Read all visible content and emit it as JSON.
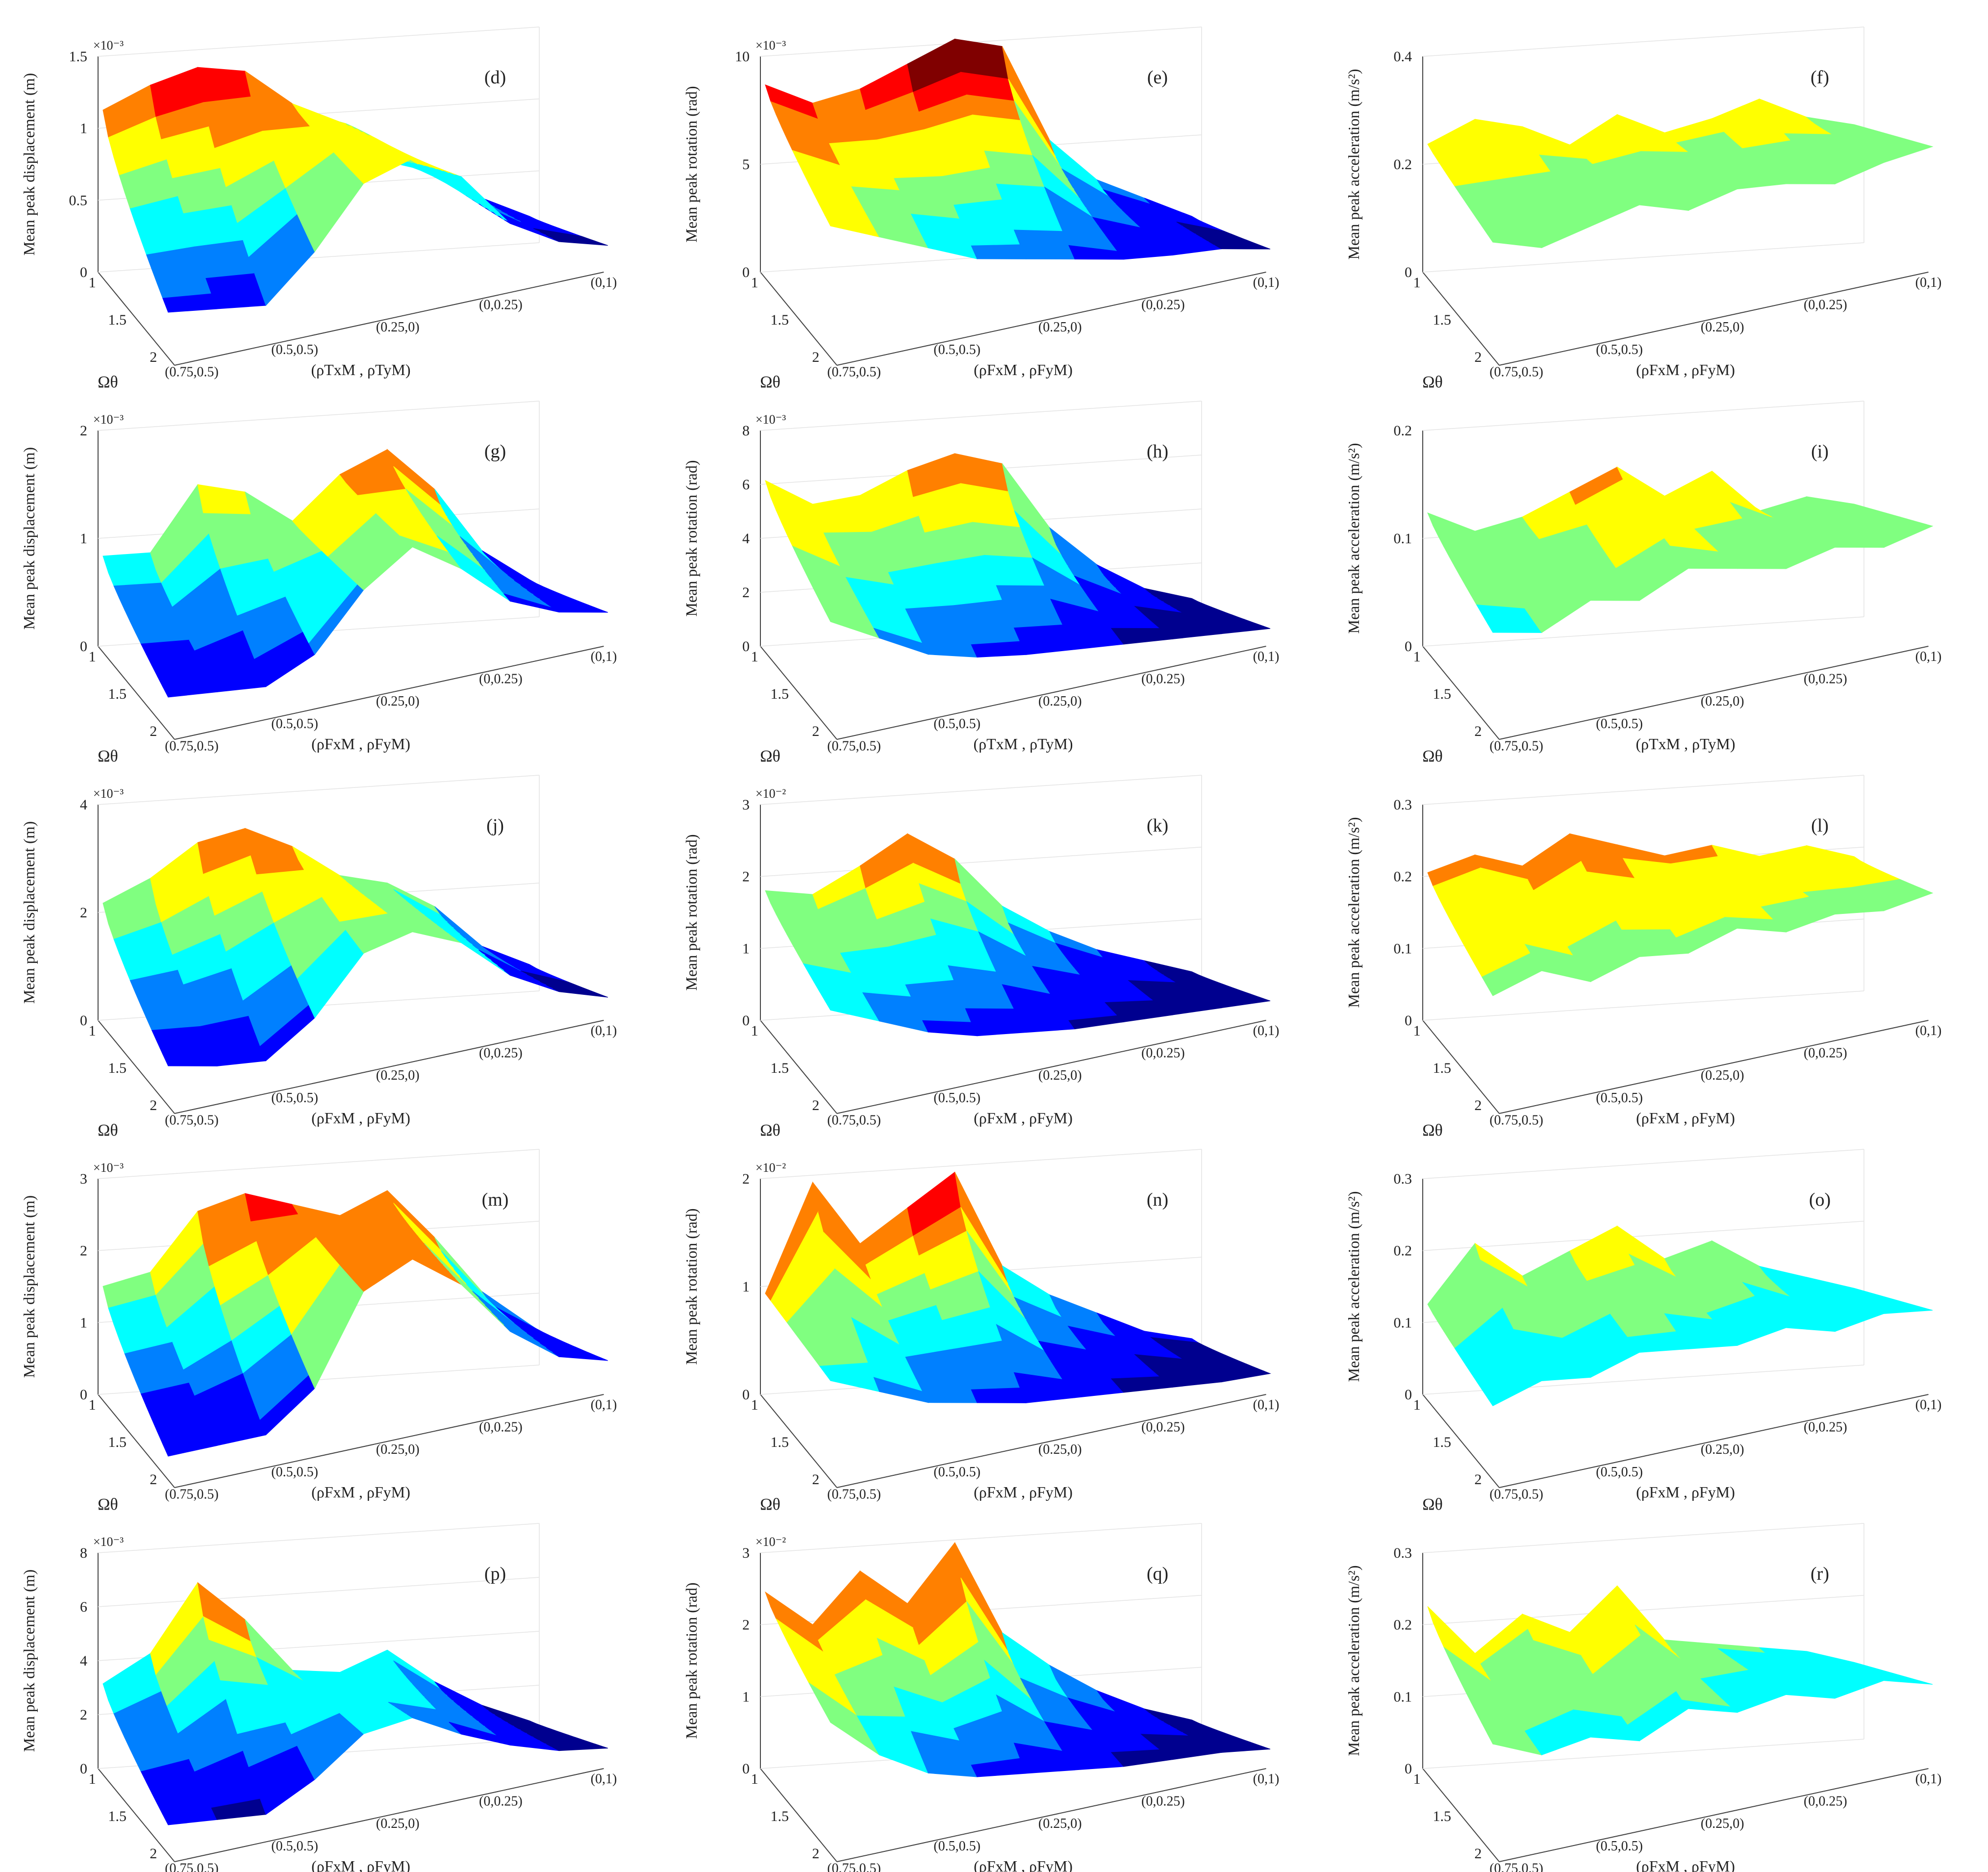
{
  "figure": {
    "x_axis_label": "(ρFxM , ρFyM)",
    "x_axis_label_variant": "(ρTxM , ρTyM)",
    "y_axis_label": "Ωθ",
    "x_ticks": [
      "(0.75,0.5)",
      "(0.5,0.5)",
      "(0.25,0)",
      "(0,0.25)",
      "(0,1)"
    ],
    "y_ticks": [
      "1",
      "1.5",
      "2"
    ],
    "colormap": [
      "#00008f",
      "#0000ff",
      "#0080ff",
      "#00ffff",
      "#80ff80",
      "#ffff00",
      "#ff8000",
      "#ff0000",
      "#800000"
    ]
  },
  "chart_data": [
    {
      "type": "surface",
      "panel_label": "(d)",
      "zlabel": "Mean peak displacement (m)",
      "zlim": [
        0,
        1.5
      ],
      "zticks": [
        "0",
        "0.5",
        "1",
        "1.5"
      ],
      "exponent": "×10⁻³",
      "xlabel_variant": "T",
      "front_profile": [
        1.1,
        1.25,
        1.35,
        1.3,
        1.05,
        0.9,
        0.6,
        0.5,
        0.3,
        0.15
      ],
      "back_profile": [
        0.3,
        0.25,
        0.2,
        0.5,
        0.9,
        1.0,
        0.8,
        0.4,
        0.2,
        0.1
      ]
    },
    {
      "type": "surface",
      "panel_label": "(e)",
      "zlabel": "Mean peak rotation (rad)",
      "zlim": [
        0,
        10
      ],
      "zticks": [
        "0",
        "5",
        "10"
      ],
      "exponent": "×10⁻³",
      "xlabel_variant": "F",
      "front_profile": [
        8.5,
        7.5,
        8.0,
        9.0,
        10.0,
        9.5,
        5.0,
        3.0,
        2.0,
        1.0
      ],
      "back_profile": [
        6.0,
        5.0,
        4.0,
        3.0,
        2.5,
        2.0,
        1.5,
        1.2,
        1.0,
        0.5
      ]
    },
    {
      "type": "surface",
      "panel_label": "(f)",
      "zlabel": "Mean peak acceleration (m/s²)",
      "zlim": [
        0,
        0.4
      ],
      "zticks": [
        "0",
        "0.2",
        "0.4"
      ],
      "exponent": "",
      "xlabel_variant": "F",
      "front_profile": [
        0.23,
        0.27,
        0.25,
        0.21,
        0.26,
        0.22,
        0.24,
        0.27,
        0.23,
        0.21
      ],
      "back_profile": [
        0.21,
        0.18,
        0.2,
        0.22,
        0.19,
        0.21,
        0.2,
        0.18,
        0.2,
        0.21
      ]
    },
    {
      "type": "surface",
      "panel_label": "(g)",
      "zlabel": "Mean peak displacement (m)",
      "zlim": [
        0,
        2
      ],
      "zticks": [
        "0",
        "1",
        "2"
      ],
      "exponent": "×10⁻³",
      "xlabel_variant": "F",
      "front_profile": [
        0.8,
        0.8,
        1.4,
        1.3,
        1.0,
        1.4,
        1.6,
        1.2,
        0.6,
        0.3
      ],
      "back_profile": [
        0.3,
        0.25,
        0.2,
        0.4,
        0.9,
        1.2,
        0.9,
        0.5,
        0.3,
        0.2
      ]
    },
    {
      "type": "surface",
      "panel_label": "(h)",
      "zlabel": "Mean peak rotation (rad)",
      "zlim": [
        0,
        8
      ],
      "zticks": [
        "0",
        "2",
        "4",
        "6",
        "8"
      ],
      "exponent": "×10⁻³",
      "xlabel_variant": "T",
      "front_profile": [
        6.0,
        5.0,
        5.2,
        6.0,
        6.5,
        6.0,
        3.5,
        2.0,
        1.0,
        0.5
      ],
      "back_profile": [
        4.0,
        3.0,
        2.0,
        1.5,
        1.2,
        1.0,
        0.8,
        0.6,
        0.4,
        0.2
      ]
    },
    {
      "type": "surface",
      "panel_label": "(i)",
      "zlabel": "Mean peak acceleration (m/s²)",
      "zlim": [
        0,
        0.2
      ],
      "zticks": [
        "0",
        "0.1",
        "0.2"
      ],
      "exponent": "",
      "xlabel_variant": "T",
      "front_profile": [
        0.12,
        0.1,
        0.11,
        0.13,
        0.15,
        0.12,
        0.14,
        0.1,
        0.11,
        0.1
      ],
      "back_profile": [
        0.09,
        0.08,
        0.1,
        0.09,
        0.11,
        0.1,
        0.09,
        0.1,
        0.09,
        0.1
      ]
    },
    {
      "type": "surface",
      "panel_label": "(j)",
      "zlabel": "Mean peak displacement (m)",
      "zlim": [
        0,
        4
      ],
      "zticks": [
        "0",
        "2",
        "4"
      ],
      "exponent": "×10⁻³",
      "xlabel_variant": "F",
      "front_profile": [
        2.1,
        2.5,
        3.1,
        3.3,
        2.9,
        2.3,
        2.1,
        1.6,
        0.8,
        0.4
      ],
      "back_profile": [
        0.7,
        0.5,
        0.4,
        1.0,
        2.0,
        2.2,
        1.8,
        1.0,
        0.5,
        0.2
      ]
    },
    {
      "type": "surface",
      "panel_label": "(k)",
      "zlabel": "Mean peak rotation (rad)",
      "zlim": [
        0,
        3
      ],
      "zticks": [
        "0",
        "1",
        "2",
        "3"
      ],
      "exponent": "×10⁻²",
      "xlabel_variant": "F",
      "front_profile": [
        1.75,
        1.65,
        2.0,
        2.4,
        2.0,
        1.3,
        0.9,
        0.6,
        0.4,
        0.2
      ],
      "back_profile": [
        1.3,
        1.0,
        0.7,
        0.5,
        0.4,
        0.3,
        0.25,
        0.2,
        0.15,
        0.1
      ]
    },
    {
      "type": "surface",
      "panel_label": "(l)",
      "zlabel": "Mean peak acceleration (m/s²)",
      "zlim": [
        0,
        0.3
      ],
      "zticks": [
        "0",
        "0.1",
        "0.2",
        "0.3"
      ],
      "exponent": "",
      "xlabel_variant": "F",
      "front_profile": [
        0.2,
        0.22,
        0.2,
        0.24,
        0.22,
        0.2,
        0.21,
        0.19,
        0.2,
        0.18
      ],
      "back_profile": [
        0.15,
        0.17,
        0.14,
        0.16,
        0.15,
        0.17,
        0.15,
        0.16,
        0.15,
        0.16
      ]
    },
    {
      "type": "surface",
      "panel_label": "(m)",
      "zlabel": "Mean peak displacement (m)",
      "zlim": [
        0,
        3
      ],
      "zticks": [
        "0",
        "1",
        "2",
        "3"
      ],
      "exponent": "×10⁻³",
      "xlabel_variant": "F",
      "front_profile": [
        1.45,
        1.6,
        2.4,
        2.6,
        2.4,
        2.2,
        2.5,
        1.8,
        1.0,
        0.5
      ],
      "back_profile": [
        0.3,
        0.3,
        0.3,
        0.8,
        2.0,
        2.3,
        1.8,
        1.0,
        0.5,
        0.3
      ]
    },
    {
      "type": "surface",
      "panel_label": "(n)",
      "zlabel": "Mean peak rotation (rad)",
      "zlim": [
        0,
        2
      ],
      "zticks": [
        "0",
        "1",
        "2"
      ],
      "exponent": "×10⁻²",
      "xlabel_variant": "F",
      "front_profile": [
        0.9,
        1.9,
        1.3,
        1.6,
        1.9,
        1.0,
        0.7,
        0.5,
        0.3,
        0.2
      ],
      "back_profile": [
        0.9,
        0.7,
        0.5,
        0.4,
        0.3,
        0.25,
        0.2,
        0.15,
        0.1,
        0.08
      ]
    },
    {
      "type": "surface",
      "panel_label": "(o)",
      "zlabel": "Mean peak acceleration (m/s²)",
      "zlim": [
        0,
        0.3
      ],
      "zticks": [
        "0",
        "0.1",
        "0.2",
        "0.3"
      ],
      "exponent": "",
      "xlabel_variant": "F",
      "front_profile": [
        0.12,
        0.2,
        0.15,
        0.18,
        0.21,
        0.16,
        0.18,
        0.14,
        0.12,
        0.1
      ],
      "back_profile": [
        0.1,
        0.12,
        0.11,
        0.13,
        0.12,
        0.11,
        0.12,
        0.1,
        0.11,
        0.1
      ]
    },
    {
      "type": "surface",
      "panel_label": "(p)",
      "zlabel": "Mean peak displacement (m)",
      "zlim": [
        0,
        8
      ],
      "zticks": [
        "0",
        "2",
        "4",
        "6",
        "8"
      ],
      "exponent": "×10⁻³",
      "xlabel_variant": "F",
      "front_profile": [
        3.0,
        4.0,
        6.5,
        5.0,
        3.0,
        2.8,
        3.5,
        2.2,
        1.2,
        0.5
      ],
      "back_profile": [
        1.0,
        0.8,
        0.6,
        1.5,
        2.8,
        3.0,
        2.0,
        1.2,
        0.6,
        0.3
      ]
    },
    {
      "type": "surface",
      "panel_label": "(q)",
      "zlabel": "Mean peak rotation (rad)",
      "zlim": [
        0,
        3
      ],
      "zticks": [
        "0",
        "1",
        "2",
        "3"
      ],
      "exponent": "×10⁻²",
      "xlabel_variant": "F",
      "front_profile": [
        2.4,
        1.9,
        2.6,
        2.1,
        2.9,
        1.6,
        1.1,
        0.7,
        0.4,
        0.2
      ],
      "back_profile": [
        1.8,
        1.2,
        0.8,
        0.6,
        0.5,
        0.4,
        0.3,
        0.25,
        0.2,
        0.1
      ]
    },
    {
      "type": "surface",
      "panel_label": "(r)",
      "zlabel": "Mean peak acceleration (m/s²)",
      "zlim": [
        0,
        0.3
      ],
      "zticks": [
        "0",
        "0.1",
        "0.2",
        "0.3"
      ],
      "exponent": "",
      "xlabel_variant": "F",
      "front_profile": [
        0.22,
        0.15,
        0.2,
        0.17,
        0.23,
        0.15,
        0.14,
        0.13,
        0.12,
        0.1
      ],
      "back_profile": [
        0.15,
        0.12,
        0.13,
        0.11,
        0.14,
        0.12,
        0.13,
        0.11,
        0.12,
        0.1
      ]
    }
  ]
}
